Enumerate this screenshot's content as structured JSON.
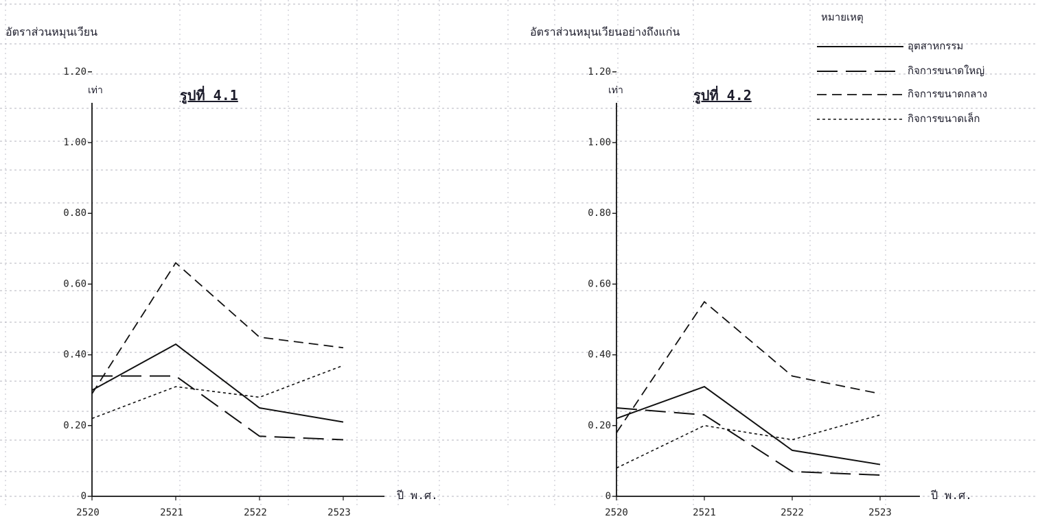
{
  "colors": {
    "ink": "#111111",
    "grid": "#9a9aa8",
    "background": "#ffffff"
  },
  "legend": {
    "title": "หมายเหตุ",
    "items": [
      {
        "label": "อุตสาหกรรม",
        "style": "solid"
      },
      {
        "label": "กิจการขนาดใหญ่",
        "style": "long-dash"
      },
      {
        "label": "กิจการขนาดกลาง",
        "style": "medium-dash"
      },
      {
        "label": "กิจการขนาดเล็ก",
        "style": "dotted"
      }
    ]
  },
  "chart_data": [
    {
      "type": "line",
      "figure_label": "รูปที่ 4.1",
      "title": "อัตราส่วนหมุนเวียน",
      "ylabel": "เท่า",
      "xlabel": "ปี พ.ศ.",
      "categories": [
        "2520",
        "2521",
        "2522",
        "2523"
      ],
      "yticks": [
        "0",
        "0.20",
        "0.40",
        "0.60",
        "0.80",
        "1.00",
        "1.20"
      ],
      "ylim": [
        0,
        1.6
      ],
      "grid": true,
      "series": [
        {
          "name": "อุตสาหกรรม",
          "style": "solid",
          "values": [
            0.3,
            0.43,
            0.25,
            0.21
          ]
        },
        {
          "name": "กิจการขนาดใหญ่",
          "style": "long-dash",
          "values": [
            0.34,
            0.34,
            0.17,
            0.16
          ]
        },
        {
          "name": "กิจการขนาดกลาง",
          "style": "medium-dash",
          "values": [
            0.29,
            0.66,
            0.45,
            0.42
          ]
        },
        {
          "name": "กิจการขนาดเล็ก",
          "style": "dotted",
          "values": [
            0.22,
            0.31,
            0.28,
            0.37
          ]
        }
      ]
    },
    {
      "type": "line",
      "figure_label": "รูปที่ 4.2",
      "title": "อัตราส่วนหมุนเวียนอย่างถึงแก่น",
      "ylabel": "เท่า",
      "xlabel": "ปี พ.ศ.",
      "categories": [
        "2520",
        "2521",
        "2522",
        "2523"
      ],
      "yticks": [
        "0",
        "0.20",
        "0.40",
        "0.60",
        "0.80",
        "1.00",
        "1.20"
      ],
      "ylim": [
        0,
        1.6
      ],
      "grid": true,
      "series": [
        {
          "name": "อุตสาหกรรม",
          "style": "solid",
          "values": [
            0.22,
            0.31,
            0.13,
            0.09
          ]
        },
        {
          "name": "กิจการขนาดใหญ่",
          "style": "long-dash",
          "values": [
            0.25,
            0.23,
            0.07,
            0.06
          ]
        },
        {
          "name": "กิจการขนาดกลาง",
          "style": "medium-dash",
          "values": [
            0.18,
            0.55,
            0.34,
            0.29
          ]
        },
        {
          "name": "กิจการขนาดเล็ก",
          "style": "dotted",
          "values": [
            0.08,
            0.2,
            0.16,
            0.23
          ]
        }
      ]
    }
  ]
}
